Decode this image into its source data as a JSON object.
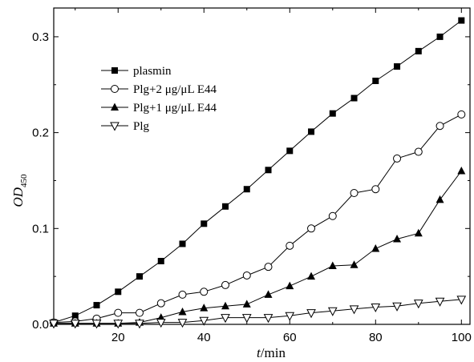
{
  "chart_data": {
    "type": "line",
    "ylabel": "OD",
    "ylabel_sub": "450",
    "xlabel_var": "t",
    "xlabel_unit": "/min",
    "xlim": [
      5,
      102
    ],
    "ylim": [
      0,
      0.33
    ],
    "x_ticks": [
      20,
      40,
      60,
      80,
      100
    ],
    "x_tick_labels": [
      "20",
      "40",
      "60",
      "80",
      "100"
    ],
    "y_ticks": [
      0.0,
      0.1,
      0.2,
      0.3
    ],
    "y_tick_labels": [
      "0.0",
      "0.1",
      "0.2",
      "0.3"
    ],
    "legend_position": "top-left",
    "x": [
      5,
      10,
      15,
      20,
      25,
      30,
      35,
      40,
      45,
      50,
      55,
      60,
      65,
      70,
      75,
      80,
      85,
      90,
      95,
      100
    ],
    "series": [
      {
        "name": "plasmin",
        "marker": "filled-square",
        "values": [
          0.002,
          0.009,
          0.02,
          0.034,
          0.05,
          0.066,
          0.084,
          0.105,
          0.123,
          0.141,
          0.161,
          0.181,
          0.201,
          0.22,
          0.236,
          0.254,
          0.269,
          0.285,
          0.3,
          0.317
        ]
      },
      {
        "name": "Plg+2 μg/μL E44",
        "marker": "open-circle",
        "values": [
          0.002,
          0.003,
          0.006,
          0.012,
          0.012,
          0.022,
          0.031,
          0.034,
          0.041,
          0.051,
          0.06,
          0.082,
          0.1,
          0.113,
          0.137,
          0.141,
          0.173,
          0.18,
          0.207,
          0.219
        ]
      },
      {
        "name": "Plg+1 μg/μL E44",
        "marker": "filled-triangle-up",
        "values": [
          0.001,
          0.001,
          0.001,
          0.001,
          0.002,
          0.007,
          0.013,
          0.017,
          0.019,
          0.021,
          0.031,
          0.04,
          0.05,
          0.061,
          0.062,
          0.079,
          0.089,
          0.095,
          0.13,
          0.16
        ]
      },
      {
        "name": "Plg",
        "marker": "open-triangle-down",
        "values": [
          0.001,
          0.001,
          0.001,
          0.001,
          0.001,
          0.002,
          0.002,
          0.004,
          0.007,
          0.007,
          0.007,
          0.009,
          0.012,
          0.014,
          0.016,
          0.018,
          0.019,
          0.022,
          0.024,
          0.026
        ]
      }
    ]
  }
}
